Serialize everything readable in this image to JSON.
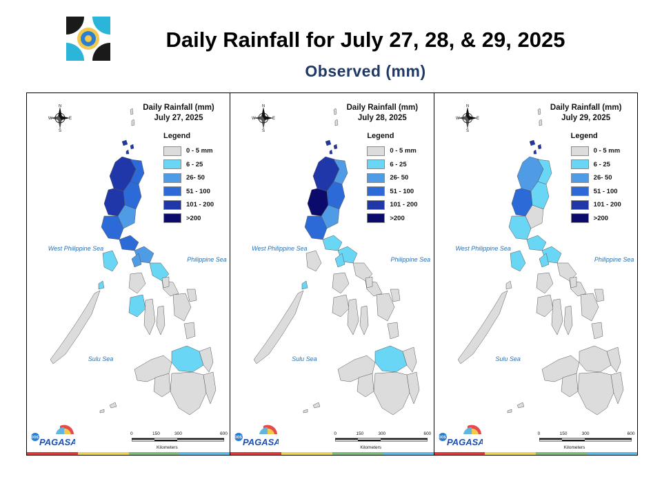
{
  "header": {
    "title": "Daily Rainfall for July 27, 28, & 29, 2025",
    "subtitle": "Observed (mm)"
  },
  "legend": {
    "title": "Legend",
    "items": [
      {
        "label": "0 - 5 mm",
        "color": "#dcdcdc"
      },
      {
        "label": "6 - 25",
        "color": "#6ad6f5"
      },
      {
        "label": "26- 50",
        "color": "#4f9be5"
      },
      {
        "label": "51 - 100",
        "color": "#2c6ad8"
      },
      {
        "label": "101 - 200",
        "color": "#1f37a8"
      },
      {
        "label": ">200",
        "color": "#0b0b6b"
      }
    ]
  },
  "labels": {
    "west_sea": "West Philippine Sea",
    "philippine_sea": "Philippine Sea",
    "sulu_sea": "Sulu Sea",
    "scale_ticks": [
      "0",
      "150",
      "300",
      "600"
    ],
    "scale_unit": "Kilometers",
    "compass": {
      "n": "N",
      "s": "S",
      "e": "E",
      "w": "W"
    },
    "logo_text": "PAGASA",
    "logo_dost": "DOST"
  },
  "panels": [
    {
      "line1": "Daily Rainfall (mm)",
      "line2": "July 27, 2025",
      "intensity": "high"
    },
    {
      "line1": "Daily Rainfall (mm)",
      "line2": "July 28, 2025",
      "intensity": "medium"
    },
    {
      "line1": "Daily Rainfall (mm)",
      "line2": "July 29, 2025",
      "intensity": "low"
    }
  ],
  "colors": {
    "land": "#dcdcdc",
    "boundary": "#555555",
    "strip": [
      "#d63a3a",
      "#e8d25a",
      "#7dba79",
      "#5fb7df"
    ]
  }
}
